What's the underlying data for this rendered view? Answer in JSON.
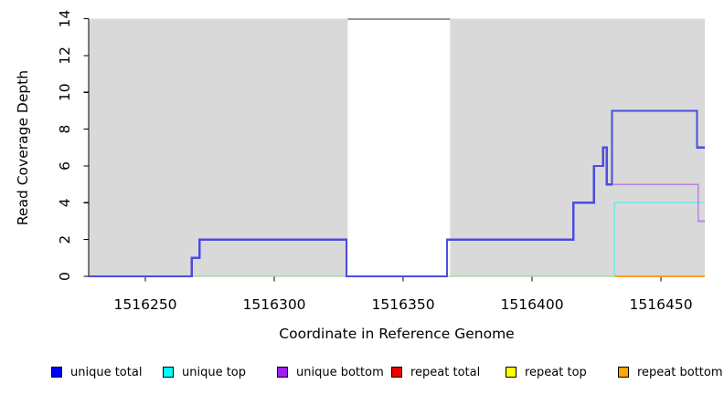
{
  "chart_data": {
    "type": "line",
    "subtype": "step-coverage",
    "title": "",
    "xlabel": "Coordinate in Reference Genome",
    "ylabel": "Read Coverage Depth",
    "xlim": [
      1516228,
      1516467
    ],
    "ylim": [
      0,
      14
    ],
    "x_ticks": [
      1516250,
      1516300,
      1516350,
      1516400,
      1516450
    ],
    "y_ticks": [
      0,
      2,
      4,
      6,
      8,
      10,
      12,
      14
    ],
    "grid": false,
    "plot_background": "#d9d9d9",
    "masked_region": {
      "x0": 1516328.5,
      "x1": 1516368.2,
      "fill": "#ffffff",
      "top_line_color": "#979797",
      "top_line_width": 2
    },
    "series": [
      {
        "name": "baseline",
        "color": "#8ecc8e",
        "width": 1.3,
        "points": [
          [
            1516228,
            0
          ],
          [
            1516432,
            0
          ]
        ]
      },
      {
        "name": "repeat bottom",
        "color": "#ff9e1f",
        "width": 2,
        "points": [
          [
            1516432,
            0
          ],
          [
            1516467,
            0
          ]
        ]
      },
      {
        "name": "unique top",
        "color": "#72e6e6",
        "width": 1.6,
        "points": [
          [
            1516432,
            0
          ],
          [
            1516432,
            4
          ],
          [
            1516467,
            4
          ]
        ]
      },
      {
        "name": "unique bottom",
        "color": "#c17ee8",
        "width": 1.6,
        "points": [
          [
            1516431.5,
            5
          ],
          [
            1516464.5,
            5
          ],
          [
            1516464.5,
            3
          ],
          [
            1516467,
            3
          ]
        ]
      },
      {
        "name": "unique total",
        "color": "#4c4ce0",
        "width": 2.3,
        "points": [
          [
            1516228,
            0
          ],
          [
            1516268,
            0
          ],
          [
            1516268,
            1
          ],
          [
            1516271,
            1
          ],
          [
            1516271,
            2
          ],
          [
            1516328,
            2
          ],
          [
            1516328,
            0
          ],
          [
            1516367,
            0
          ],
          [
            1516367,
            2
          ],
          [
            1516416,
            2
          ],
          [
            1516416,
            4
          ],
          [
            1516424,
            4
          ],
          [
            1516424,
            6
          ],
          [
            1516427.5,
            6
          ],
          [
            1516427.5,
            7
          ],
          [
            1516429,
            7
          ],
          [
            1516429,
            5
          ],
          [
            1516431,
            5
          ],
          [
            1516431,
            9
          ],
          [
            1516464,
            9
          ],
          [
            1516464,
            7
          ],
          [
            1516467,
            7
          ]
        ]
      }
    ],
    "legend_position": "bottom",
    "legend": [
      {
        "label": "unique total",
        "color": "#0000ff"
      },
      {
        "label": "unique top",
        "color": "#00ffff"
      },
      {
        "label": "unique bottom",
        "color": "#a020f0"
      },
      {
        "label": "repeat total",
        "color": "#ee0000"
      },
      {
        "label": "repeat top",
        "color": "#ffff00"
      },
      {
        "label": "repeat bottom",
        "color": "#ffa500"
      }
    ]
  }
}
